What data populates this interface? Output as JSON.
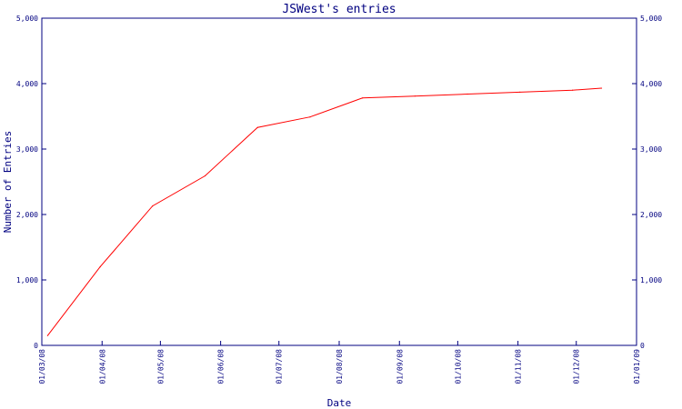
{
  "chart_data": {
    "type": "line",
    "title": "JSWest's entries",
    "xlabel": "Date",
    "ylabel": "Number of Entries",
    "x_ticks": [
      "01/03/08",
      "01/04/08",
      "01/05/08",
      "01/06/08",
      "01/07/08",
      "01/08/08",
      "01/09/08",
      "01/10/08",
      "01/11/08",
      "01/12/08",
      "01/01/09"
    ],
    "y_ticks": [
      "0",
      "1,000",
      "2,000",
      "3,000",
      "4,000",
      "5,000"
    ],
    "ylim": [
      0,
      5000
    ],
    "xlim": [
      "2008-03-01",
      "2009-01-01"
    ],
    "grid": false,
    "series": [
      {
        "color": "#ff0000",
        "points": [
          {
            "x": "2008-03-04",
            "y": 150
          },
          {
            "x": "2008-03-31",
            "y": 1200
          },
          {
            "x": "2008-04-27",
            "y": 2130
          },
          {
            "x": "2008-05-24",
            "y": 2590
          },
          {
            "x": "2008-06-20",
            "y": 3330
          },
          {
            "x": "2008-07-17",
            "y": 3490
          },
          {
            "x": "2008-08-13",
            "y": 3780
          },
          {
            "x": "2008-09-09",
            "y": 3810
          },
          {
            "x": "2008-10-06",
            "y": 3840
          },
          {
            "x": "2008-11-02",
            "y": 3870
          },
          {
            "x": "2008-11-29",
            "y": 3900
          },
          {
            "x": "2008-12-14",
            "y": 3930
          }
        ]
      }
    ],
    "colors": {
      "axis": "#000080",
      "text": "#000080",
      "line": "#ff0000"
    }
  }
}
